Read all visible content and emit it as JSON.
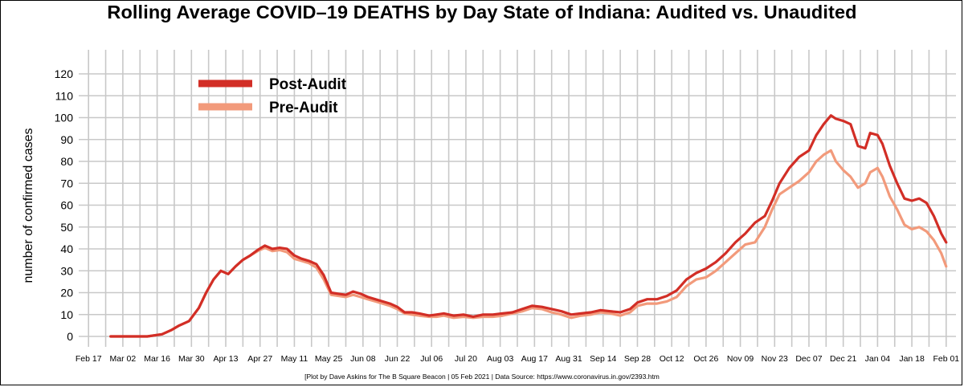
{
  "chart_data": {
    "type": "line",
    "title": "Rolling Average COVID–19 DEATHS by Day State of Indiana: Audited vs. Unaudited",
    "caption": "[Plot by Dave Askins for The B Square Beacon | 05 Feb 2021 | Data Source: https://www.coronavirus.in.gov/2393.htm",
    "ylabel": "number of confirmed cases",
    "xlabel": "",
    "ylim": [
      0,
      120
    ],
    "yticks": [
      0,
      10,
      20,
      30,
      40,
      50,
      60,
      70,
      80,
      90,
      100,
      110,
      120
    ],
    "xlim": [
      "2020-02-13",
      "2021-02-05"
    ],
    "xticks": [
      "2020-02-17",
      "2020-03-02",
      "2020-03-16",
      "2020-03-30",
      "2020-04-13",
      "2020-04-27",
      "2020-05-11",
      "2020-05-25",
      "2020-06-08",
      "2020-06-22",
      "2020-07-06",
      "2020-07-20",
      "2020-08-03",
      "2020-08-17",
      "2020-08-31",
      "2020-09-14",
      "2020-09-28",
      "2020-10-12",
      "2020-10-26",
      "2020-11-09",
      "2020-11-23",
      "2020-12-07",
      "2020-12-21",
      "2021-01-04",
      "2021-01-18",
      "2021-02-01"
    ],
    "xtick_labels": [
      "Feb 17",
      "Mar 02",
      "Mar 16",
      "Mar 30",
      "Apr 13",
      "Apr 27",
      "May 11",
      "May 25",
      "Jun 08",
      "Jun 22",
      "Jul 06",
      "Jul 20",
      "Aug 03",
      "Aug 17",
      "Aug 31",
      "Sep 14",
      "Sep 28",
      "Oct 12",
      "Oct 26",
      "Nov 09",
      "Nov 23",
      "Dec 07",
      "Dec 21",
      "Jan 04",
      "Jan 18",
      "Feb 01"
    ],
    "grid": true,
    "legend_position": "top-left",
    "series": [
      {
        "name": "Post-Audit",
        "color": "#d22e26",
        "points": [
          [
            "2020-02-26",
            0
          ],
          [
            "2020-03-05",
            0
          ],
          [
            "2020-03-12",
            0
          ],
          [
            "2020-03-18",
            1
          ],
          [
            "2020-03-22",
            3
          ],
          [
            "2020-03-25",
            5
          ],
          [
            "2020-03-29",
            7
          ],
          [
            "2020-04-02",
            13
          ],
          [
            "2020-04-05",
            20
          ],
          [
            "2020-04-08",
            26
          ],
          [
            "2020-04-11",
            30
          ],
          [
            "2020-04-14",
            28.5
          ],
          [
            "2020-04-17",
            32
          ],
          [
            "2020-04-20",
            35
          ],
          [
            "2020-04-23",
            37
          ],
          [
            "2020-04-26",
            39.5
          ],
          [
            "2020-04-29",
            41.5
          ],
          [
            "2020-05-02",
            40
          ],
          [
            "2020-05-05",
            40.5
          ],
          [
            "2020-05-08",
            40
          ],
          [
            "2020-05-11",
            37
          ],
          [
            "2020-05-14",
            35.5
          ],
          [
            "2020-05-17",
            34.5
          ],
          [
            "2020-05-20",
            33
          ],
          [
            "2020-05-23",
            28
          ],
          [
            "2020-05-26",
            20
          ],
          [
            "2020-05-29",
            19.5
          ],
          [
            "2020-06-01",
            19
          ],
          [
            "2020-06-04",
            20.5
          ],
          [
            "2020-06-07",
            19.5
          ],
          [
            "2020-06-10",
            18
          ],
          [
            "2020-06-13",
            17
          ],
          [
            "2020-06-16",
            16
          ],
          [
            "2020-06-19",
            15
          ],
          [
            "2020-06-22",
            13.5
          ],
          [
            "2020-06-25",
            11
          ],
          [
            "2020-06-28",
            11
          ],
          [
            "2020-07-01",
            10.5
          ],
          [
            "2020-07-05",
            9.5
          ],
          [
            "2020-07-08",
            10
          ],
          [
            "2020-07-11",
            10.5
          ],
          [
            "2020-07-15",
            9.5
          ],
          [
            "2020-07-19",
            10
          ],
          [
            "2020-07-23",
            9
          ],
          [
            "2020-07-27",
            10
          ],
          [
            "2020-07-31",
            10
          ],
          [
            "2020-08-04",
            10.5
          ],
          [
            "2020-08-08",
            11
          ],
          [
            "2020-08-12",
            12.5
          ],
          [
            "2020-08-16",
            14
          ],
          [
            "2020-08-20",
            13.5
          ],
          [
            "2020-08-24",
            12.5
          ],
          [
            "2020-08-28",
            11.5
          ],
          [
            "2020-09-01",
            10
          ],
          [
            "2020-09-05",
            10.5
          ],
          [
            "2020-09-09",
            11
          ],
          [
            "2020-09-13",
            12
          ],
          [
            "2020-09-17",
            11.5
          ],
          [
            "2020-09-21",
            11
          ],
          [
            "2020-09-25",
            12.5
          ],
          [
            "2020-09-28",
            15.5
          ],
          [
            "2020-10-02",
            17
          ],
          [
            "2020-10-06",
            17
          ],
          [
            "2020-10-10",
            18.5
          ],
          [
            "2020-10-14",
            21
          ],
          [
            "2020-10-18",
            26
          ],
          [
            "2020-10-22",
            29
          ],
          [
            "2020-10-26",
            31
          ],
          [
            "2020-10-30",
            34
          ],
          [
            "2020-11-03",
            38
          ],
          [
            "2020-11-07",
            43
          ],
          [
            "2020-11-11",
            47
          ],
          [
            "2020-11-15",
            52
          ],
          [
            "2020-11-19",
            55
          ],
          [
            "2020-11-22",
            62
          ],
          [
            "2020-11-25",
            70
          ],
          [
            "2020-11-29",
            77
          ],
          [
            "2020-12-03",
            82
          ],
          [
            "2020-12-07",
            85
          ],
          [
            "2020-12-10",
            92
          ],
          [
            "2020-12-13",
            97
          ],
          [
            "2020-12-16",
            101
          ],
          [
            "2020-12-18",
            99.5
          ],
          [
            "2020-12-21",
            98.5
          ],
          [
            "2020-12-24",
            97
          ],
          [
            "2020-12-27",
            87
          ],
          [
            "2020-12-30",
            86
          ],
          [
            "2021-01-01",
            93
          ],
          [
            "2021-01-04",
            92
          ],
          [
            "2021-01-06",
            88
          ],
          [
            "2021-01-09",
            78
          ],
          [
            "2021-01-12",
            70
          ],
          [
            "2021-01-15",
            63
          ],
          [
            "2021-01-18",
            62
          ],
          [
            "2021-01-21",
            63
          ],
          [
            "2021-01-24",
            61
          ],
          [
            "2021-01-27",
            55
          ],
          [
            "2021-01-30",
            47
          ],
          [
            "2021-02-01",
            43
          ]
        ]
      },
      {
        "name": "Pre-Audit",
        "color": "#f29a7b",
        "points": [
          [
            "2020-02-26",
            0
          ],
          [
            "2020-03-05",
            0
          ],
          [
            "2020-03-12",
            0
          ],
          [
            "2020-03-18",
            1
          ],
          [
            "2020-03-22",
            3
          ],
          [
            "2020-03-25",
            5
          ],
          [
            "2020-03-29",
            7
          ],
          [
            "2020-04-02",
            13
          ],
          [
            "2020-04-05",
            20
          ],
          [
            "2020-04-08",
            26
          ],
          [
            "2020-04-11",
            30
          ],
          [
            "2020-04-14",
            28.5
          ],
          [
            "2020-04-17",
            32
          ],
          [
            "2020-04-20",
            35
          ],
          [
            "2020-04-23",
            37
          ],
          [
            "2020-04-26",
            39
          ],
          [
            "2020-04-29",
            40.5
          ],
          [
            "2020-05-02",
            39
          ],
          [
            "2020-05-05",
            39.5
          ],
          [
            "2020-05-08",
            38.5
          ],
          [
            "2020-05-11",
            35.5
          ],
          [
            "2020-05-14",
            34.5
          ],
          [
            "2020-05-17",
            33.5
          ],
          [
            "2020-05-20",
            31.5
          ],
          [
            "2020-05-23",
            26
          ],
          [
            "2020-05-26",
            19
          ],
          [
            "2020-05-29",
            18.5
          ],
          [
            "2020-06-01",
            18
          ],
          [
            "2020-06-04",
            19
          ],
          [
            "2020-06-07",
            18
          ],
          [
            "2020-06-10",
            17
          ],
          [
            "2020-06-13",
            16
          ],
          [
            "2020-06-16",
            15
          ],
          [
            "2020-06-19",
            14
          ],
          [
            "2020-06-22",
            12.5
          ],
          [
            "2020-06-25",
            10.5
          ],
          [
            "2020-06-28",
            10
          ],
          [
            "2020-07-01",
            9.5
          ],
          [
            "2020-07-05",
            9
          ],
          [
            "2020-07-08",
            9
          ],
          [
            "2020-07-11",
            9.5
          ],
          [
            "2020-07-15",
            8.5
          ],
          [
            "2020-07-19",
            9
          ],
          [
            "2020-07-23",
            8.5
          ],
          [
            "2020-07-27",
            9
          ],
          [
            "2020-07-31",
            9
          ],
          [
            "2020-08-04",
            9.5
          ],
          [
            "2020-08-08",
            10.5
          ],
          [
            "2020-08-12",
            11.5
          ],
          [
            "2020-08-16",
            13
          ],
          [
            "2020-08-20",
            12.5
          ],
          [
            "2020-08-24",
            11
          ],
          [
            "2020-08-28",
            10
          ],
          [
            "2020-09-01",
            8.5
          ],
          [
            "2020-09-05",
            9.5
          ],
          [
            "2020-09-09",
            10
          ],
          [
            "2020-09-13",
            11
          ],
          [
            "2020-09-17",
            10.5
          ],
          [
            "2020-09-21",
            9.5
          ],
          [
            "2020-09-25",
            11
          ],
          [
            "2020-09-28",
            14
          ],
          [
            "2020-10-02",
            15
          ],
          [
            "2020-10-06",
            15
          ],
          [
            "2020-10-10",
            16
          ],
          [
            "2020-10-14",
            18
          ],
          [
            "2020-10-18",
            23
          ],
          [
            "2020-10-22",
            26
          ],
          [
            "2020-10-26",
            27
          ],
          [
            "2020-10-30",
            30
          ],
          [
            "2020-11-03",
            34
          ],
          [
            "2020-11-07",
            38
          ],
          [
            "2020-11-11",
            42
          ],
          [
            "2020-11-15",
            43
          ],
          [
            "2020-11-19",
            50
          ],
          [
            "2020-11-22",
            58
          ],
          [
            "2020-11-25",
            65
          ],
          [
            "2020-11-29",
            68
          ],
          [
            "2020-12-03",
            71
          ],
          [
            "2020-12-07",
            75
          ],
          [
            "2020-12-10",
            80
          ],
          [
            "2020-12-13",
            83
          ],
          [
            "2020-12-16",
            85
          ],
          [
            "2020-12-18",
            80
          ],
          [
            "2020-12-21",
            76
          ],
          [
            "2020-12-24",
            73
          ],
          [
            "2020-12-27",
            68
          ],
          [
            "2020-12-30",
            70
          ],
          [
            "2021-01-01",
            75
          ],
          [
            "2021-01-04",
            77
          ],
          [
            "2021-01-06",
            73
          ],
          [
            "2021-01-09",
            64
          ],
          [
            "2021-01-12",
            58
          ],
          [
            "2021-01-15",
            51
          ],
          [
            "2021-01-18",
            49
          ],
          [
            "2021-01-21",
            50
          ],
          [
            "2021-01-24",
            48
          ],
          [
            "2021-01-27",
            44
          ],
          [
            "2021-01-30",
            38
          ],
          [
            "2021-02-01",
            32
          ]
        ]
      }
    ]
  }
}
